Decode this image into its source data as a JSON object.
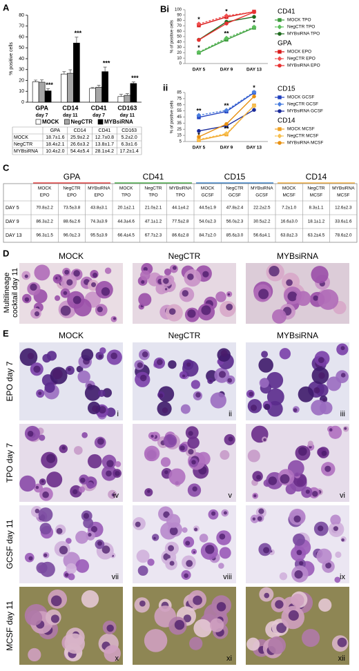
{
  "panel_labels": [
    "A",
    "Bi",
    "ii",
    "C",
    "D",
    "E"
  ],
  "chart_data": [
    {
      "type": "bar",
      "ylabel": "% positive cells",
      "categories": [
        "GPA",
        "CD14",
        "CD41",
        "CD163"
      ],
      "category_sublabels": [
        "day 7",
        "day 11",
        "day 7",
        "day 11"
      ],
      "ylim": [
        0,
        80
      ],
      "yticks": [
        0,
        10,
        20,
        30,
        40,
        50,
        60,
        70,
        80
      ],
      "series": [
        {
          "name": "MOCK",
          "color": "#ffffff",
          "values": [
            18.7,
            25.9,
            12.7,
            5.2
          ],
          "errors": [
            1.6,
            2.2,
            0.8,
            2.0
          ]
        },
        {
          "name": "NegCTR",
          "color": "#a6a6a6",
          "values": [
            18.4,
            26.6,
            13.8,
            6.3
          ],
          "errors": [
            2.1,
            3.2,
            1.7,
            1.6
          ]
        },
        {
          "name": "MYBsiRNA",
          "color": "#000000",
          "values": [
            10.4,
            54.4,
            28.1,
            17.2
          ],
          "errors": [
            2.0,
            5.4,
            4.2,
            1.4
          ]
        }
      ],
      "annotations": [
        "***",
        "***",
        "***",
        "***"
      ]
    },
    {
      "type": "line",
      "ylabel": "% of positive cells",
      "x": [
        "DAY 5",
        "DAY 9",
        "DAY 13"
      ],
      "ylim": [
        0,
        100
      ],
      "yticks": [
        0,
        10,
        20,
        30,
        40,
        50,
        60,
        70,
        80,
        90,
        100
      ],
      "groups": [
        {
          "title": "CD41",
          "color": "#2e8b2e",
          "series": [
            {
              "name": "MOCK TPO",
              "color": "#3a9a3a",
              "marker": "square",
              "dash": false,
              "values": [
                20.1,
                44.3,
                66.4
              ]
            },
            {
              "name": "NegCTR TPO",
              "color": "#5cbf5c",
              "marker": "diamond",
              "dash": true,
              "values": [
                21.0,
                47.1,
                67.7
              ],
              "significance": [
                "*",
                "**",
                "*"
              ]
            },
            {
              "name": "MYBsiRNA TPO",
              "color": "#1e6b1e",
              "marker": "circle",
              "dash": false,
              "values": [
                44.1,
                77.5,
                86.6
              ]
            }
          ]
        },
        {
          "title": "GPA",
          "color": "#e02020",
          "series": [
            {
              "name": "MOCK EPO",
              "color": "#d81818",
              "marker": "square",
              "dash": false,
              "values": [
                70.8,
                86.3,
                96.3
              ]
            },
            {
              "name": "NegCTR EPO",
              "color": "#f05050",
              "marker": "diamond",
              "dash": true,
              "values": [
                73.5,
                88.6,
                96.0
              ],
              "significance": [
                "*",
                "*",
                null
              ]
            },
            {
              "name": "MYBsiRNA EPO",
              "color": "#e83030",
              "marker": "circle",
              "dash": false,
              "values": [
                43.8,
                74.3,
                95.5
              ]
            }
          ]
        }
      ]
    },
    {
      "type": "line",
      "ylabel": "% of positive cells",
      "x": [
        "DAY 5",
        "DAY 9",
        "DAY 13"
      ],
      "ylim": [
        5,
        85
      ],
      "yticks": [
        5,
        15,
        25,
        35,
        45,
        55,
        65,
        75,
        85
      ],
      "groups": [
        {
          "title": "CD15",
          "color": "#1f5fbf",
          "series": [
            {
              "name": "MOCK GCSF",
              "color": "#1f3fbf",
              "marker": "square",
              "dash": false,
              "values": [
                44.5,
                54.0,
                84.7
              ]
            },
            {
              "name": "NegCTR GCSF",
              "color": "#4a7fe0",
              "marker": "diamond",
              "dash": true,
              "values": [
                47.8,
                56.0,
                85.6
              ],
              "significance": [
                "**",
                "**",
                "*"
              ]
            },
            {
              "name": "MYBsiRNA GCSF",
              "color": "#1a2a9a",
              "marker": "circle",
              "dash": false,
              "values": [
                22.2,
                30.5,
                56.6
              ]
            }
          ]
        },
        {
          "title": "CD14",
          "color": "#f0a020",
          "series": [
            {
              "name": "MOCK MCSF",
              "color": "#f0a020",
              "marker": "square",
              "dash": false,
              "values": [
                7.2,
                16.6,
                63.8
              ]
            },
            {
              "name": "NegCTR MCSF",
              "color": "#f7c050",
              "marker": "diamond",
              "dash": true,
              "values": [
                8.3,
                18.1,
                63.2
              ],
              "significance": [
                "*",
                "**",
                null
              ]
            },
            {
              "name": "MYBsiRNA MCSF",
              "color": "#e89010",
              "marker": "circle",
              "dash": false,
              "values": [
                12.6,
                33.6,
                78.6
              ]
            }
          ]
        }
      ]
    }
  ],
  "table_a": {
    "columns": [
      "GPA",
      "CD14",
      "CD41",
      "CD163"
    ],
    "rows": [
      {
        "label": "MOCK",
        "cells": [
          "18.7±1.6",
          "25.9±2.2",
          "12.7±0.8",
          "5.2±2.0"
        ]
      },
      {
        "label": "NegCTR",
        "cells": [
          "18.4±2.1",
          "26.6±3.2",
          "13.8±1.7",
          "6.3±1.6"
        ]
      },
      {
        "label": "MYBsiRNA",
        "cells": [
          "10.4±2.0",
          "54.4±5.4",
          "28.1±4.2",
          "17.2±1.4"
        ]
      }
    ]
  },
  "table_c": {
    "groups": [
      {
        "title": "GPA",
        "color": "#e02020",
        "columns": [
          [
            "MOCK",
            "EPO"
          ],
          [
            "NegCTR",
            "EPO"
          ],
          [
            "MYBsiRNA",
            "EPO"
          ]
        ]
      },
      {
        "title": "CD41",
        "color": "#2ea02e",
        "columns": [
          [
            "MOCK",
            "TPO"
          ],
          [
            "NegCTR",
            "TPO"
          ],
          [
            "MYBsiRNA",
            "TPO"
          ]
        ]
      },
      {
        "title": "CD15",
        "color": "#1f6fbf",
        "columns": [
          [
            "MOCK",
            "GCSF"
          ],
          [
            "NegCTR",
            "GCSF"
          ],
          [
            "MYBsiRNA",
            "GCSF"
          ]
        ]
      },
      {
        "title": "CD14",
        "color": "#f0a020",
        "columns": [
          [
            "MOCK",
            "MCSF"
          ],
          [
            "NegCTR",
            "MCSF"
          ],
          [
            "MYBsiRNA",
            "MCSF"
          ]
        ]
      }
    ],
    "rows": [
      {
        "label": "DAY 5",
        "cells": [
          "70.8±2.2",
          "73.5±3.8",
          "43.8±3.1",
          "20.1±2.1",
          "21.0±2.1",
          "44.1±4.2",
          "44.5±1.9",
          "47.8±2.4",
          "22.2±2.5",
          "7.2±1.0",
          "8.3±1.1",
          "12.6±2.3"
        ]
      },
      {
        "label": "DAY 9",
        "cells": [
          "86.3±2.2",
          "88.6±2.6",
          "74.3±3.9",
          "44.3±4.6",
          "47.1±1.2",
          "77.5±2.8",
          "54.0±2.3",
          "56.0±2.3",
          "30.5±2.2",
          "16.6±3.0",
          "18.1±1.2",
          "33.6±1.6"
        ]
      },
      {
        "label": "DAY 13",
        "cells": [
          "96.3±1.5",
          "96.0±2.3",
          "95.5±3.9",
          "66.4±4.5",
          "67.7±2.3",
          "86.6±2.8",
          "84.7±2.0",
          "85.6±3.0",
          "56.6±4.1",
          "63.8±2.3",
          "63.2±4.5",
          "78.6±2.0"
        ]
      }
    ]
  },
  "panel_d": {
    "columns": [
      "MOCK",
      "NegCTR",
      "MYBsiRNA"
    ],
    "row_label": [
      "Multilineage",
      "cocktail day 11"
    ]
  },
  "panel_e": {
    "columns": [
      "MOCK",
      "NegCTR",
      "MYBsiRNA"
    ],
    "rows": [
      {
        "label": "EPO day 7",
        "images": [
          "i",
          "ii",
          "iii"
        ]
      },
      {
        "label": "TPO day 7",
        "images": [
          "iv",
          "v",
          "vi"
        ]
      },
      {
        "label": "GCSF day 11",
        "images": [
          "vii",
          "viii",
          "ix"
        ]
      },
      {
        "label": "MCSF day 11",
        "images": [
          "x",
          "xi",
          "xii"
        ]
      }
    ]
  }
}
